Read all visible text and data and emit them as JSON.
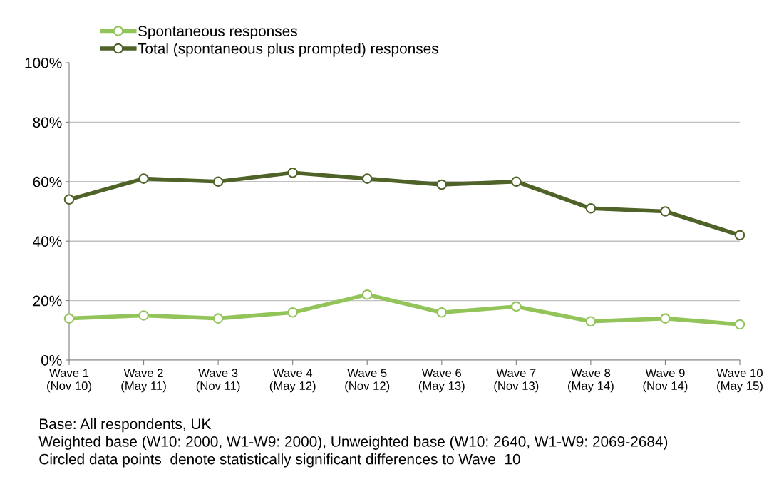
{
  "chart_data": {
    "type": "line",
    "categories": [
      "Wave 1\n(Nov 10)",
      "Wave 2\n(May 11)",
      "Wave 3\n(Nov 11)",
      "Wave 4\n(May 12)",
      "Wave 5\n(Nov 12)",
      "Wave 6\n(May 13)",
      "Wave 7\n(Nov 13)",
      "Wave 8\n(May 14)",
      "Wave 9\n(Nov 14)",
      "Wave 10\n(May 15)"
    ],
    "series": [
      {
        "name": "Spontaneous responses",
        "color": "#93c45a",
        "values": [
          14,
          15,
          14,
          16,
          22,
          16,
          18,
          13,
          14,
          12
        ]
      },
      {
        "name": "Total (spontaneous plus prompted) responses",
        "color": "#4f6228",
        "values": [
          54,
          61,
          60,
          63,
          61,
          59,
          60,
          51,
          50,
          42
        ]
      }
    ],
    "ylim": [
      0,
      100
    ],
    "yticks": [
      {
        "value": 0,
        "label": "0%"
      },
      {
        "value": 20,
        "label": "20%"
      },
      {
        "value": 40,
        "label": "40%"
      },
      {
        "value": 60,
        "label": "60%"
      },
      {
        "value": 80,
        "label": "80%"
      },
      {
        "value": 100,
        "label": "100%"
      }
    ],
    "grid": "y",
    "legend": "top left",
    "marker": "circle",
    "line_style": "solid",
    "annotations": [
      "Base: All respondents, UK",
      "Weighted base (W10: 2000, W1-W9: 2000), Unweighted base (W10: 2640, W1-W9: 2069-2684)",
      "Circled data points  denote statistically significant differences to Wave  10"
    ]
  }
}
